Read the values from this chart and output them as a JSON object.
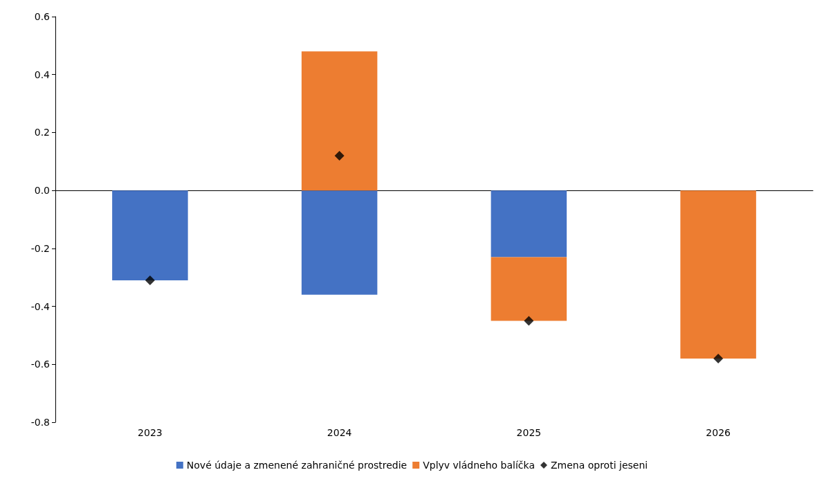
{
  "chart_data": {
    "type": "bar",
    "stacked": true,
    "categories": [
      "2023",
      "2024",
      "2025",
      "2026"
    ],
    "series": [
      {
        "name": "Nové údaje a zmenené zahraničné prostredie",
        "color": "#4472c4",
        "values": [
          -0.31,
          -0.36,
          -0.23,
          0
        ]
      },
      {
        "name": "Vplyv vládneho balíčka",
        "color": "#ed7d31",
        "values": [
          0,
          0.48,
          -0.22,
          -0.58
        ]
      },
      {
        "name": "Zmena oproti jeseni",
        "type": "scatter",
        "color": "#000000",
        "marker": "diamond",
        "values": [
          -0.31,
          0.12,
          -0.45,
          -0.58
        ]
      }
    ],
    "ylim": [
      -0.8,
      0.6
    ],
    "yticks": [
      -0.8,
      -0.6,
      -0.4,
      -0.2,
      {
        "value": 0,
        "label": "0.0"
      },
      0.2,
      0.4,
      0.6
    ],
    "legend": "bottom"
  }
}
